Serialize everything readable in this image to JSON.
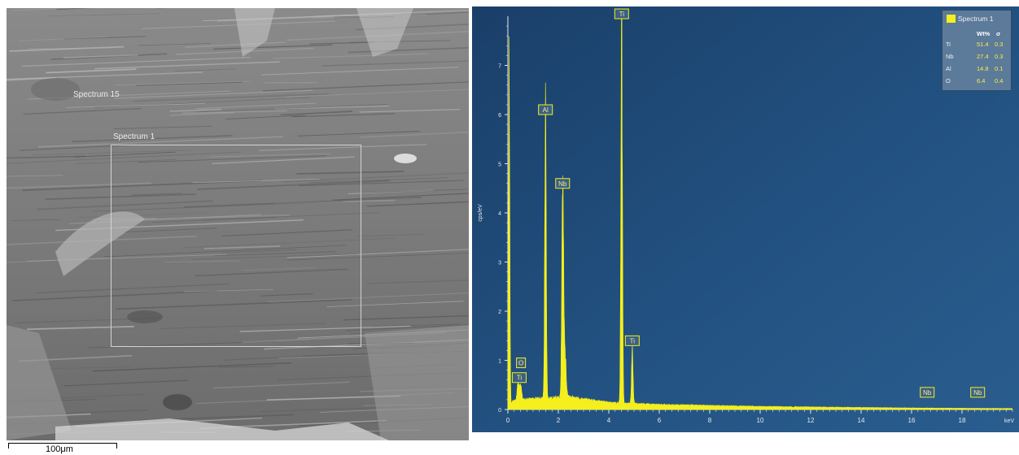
{
  "sem_image": {
    "labels": {
      "spectrum15": "Spectrum 15",
      "spectrum1": "Spectrum 1"
    },
    "scale_bar": "100μm"
  },
  "legend": {
    "title": "Spectrum 1",
    "headers": {
      "wt": "Wt%",
      "sigma": "σ"
    },
    "rows": [
      {
        "element": "Ti",
        "wt": "51.4",
        "sigma": "0.3"
      },
      {
        "element": "Nb",
        "wt": "27.4",
        "sigma": "0.3"
      },
      {
        "element": "Al",
        "wt": "14.8",
        "sigma": "0.1"
      },
      {
        "element": "O",
        "wt": "6.4",
        "sigma": "0.4"
      }
    ],
    "swatch_color": "#f4ef1d"
  },
  "chart_data": {
    "type": "line",
    "xlabel": "keV",
    "ylabel": "cps/eV",
    "xlim": [
      0,
      20
    ],
    "ylim": [
      0,
      8
    ],
    "x_ticks": [
      "0",
      "2",
      "4",
      "6",
      "8",
      "10",
      "12",
      "14",
      "16",
      "18"
    ],
    "y_ticks": [
      "0",
      "1",
      "2",
      "3",
      "4",
      "5",
      "6",
      "7"
    ],
    "series": [
      {
        "fill_color": "#f4ef1d",
        "peaks": [
          {
            "x": 0.05,
            "y": 7.0,
            "w": 0.025
          },
          {
            "x": 0.39,
            "y": 0.28,
            "w": 0.03
          },
          {
            "x": 0.45,
            "y": 0.22,
            "w": 0.03
          },
          {
            "x": 0.52,
            "y": 0.3,
            "w": 0.03
          },
          {
            "x": 1.49,
            "y": 5.75,
            "w": 0.03
          },
          {
            "x": 2.17,
            "y": 4.25,
            "w": 0.035
          },
          {
            "x": 2.26,
            "y": 0.9,
            "w": 0.05
          },
          {
            "x": 4.51,
            "y": 7.75,
            "w": 0.03
          },
          {
            "x": 4.93,
            "y": 1.05,
            "w": 0.03
          }
        ],
        "background": [
          {
            "x": 0.2,
            "y": 0.18
          },
          {
            "x": 1.0,
            "y": 0.22
          },
          {
            "x": 2.5,
            "y": 0.25
          },
          {
            "x": 4.0,
            "y": 0.14
          },
          {
            "x": 6.0,
            "y": 0.1
          },
          {
            "x": 10.0,
            "y": 0.06
          },
          {
            "x": 16.0,
            "y": 0.03
          },
          {
            "x": 20.0,
            "y": 0.02
          }
        ]
      }
    ],
    "peak_labels": [
      {
        "text": "O",
        "x": 0.52,
        "y": 0.85
      },
      {
        "text": "Ti",
        "x": 0.45,
        "y": 0.55
      },
      {
        "text": "Al",
        "x": 1.49,
        "y": 6.0
      },
      {
        "text": "Nb",
        "x": 2.17,
        "y": 4.5
      },
      {
        "text": "Ti",
        "x": 4.51,
        "y": 7.95
      },
      {
        "text": "Ti",
        "x": 4.93,
        "y": 1.3
      },
      {
        "text": "Nb",
        "x": 16.62,
        "y": 0.25
      },
      {
        "text": "Nb",
        "x": 18.62,
        "y": 0.25
      }
    ],
    "background_color": "#1d4874",
    "axis_color": "#e8e8e8"
  }
}
